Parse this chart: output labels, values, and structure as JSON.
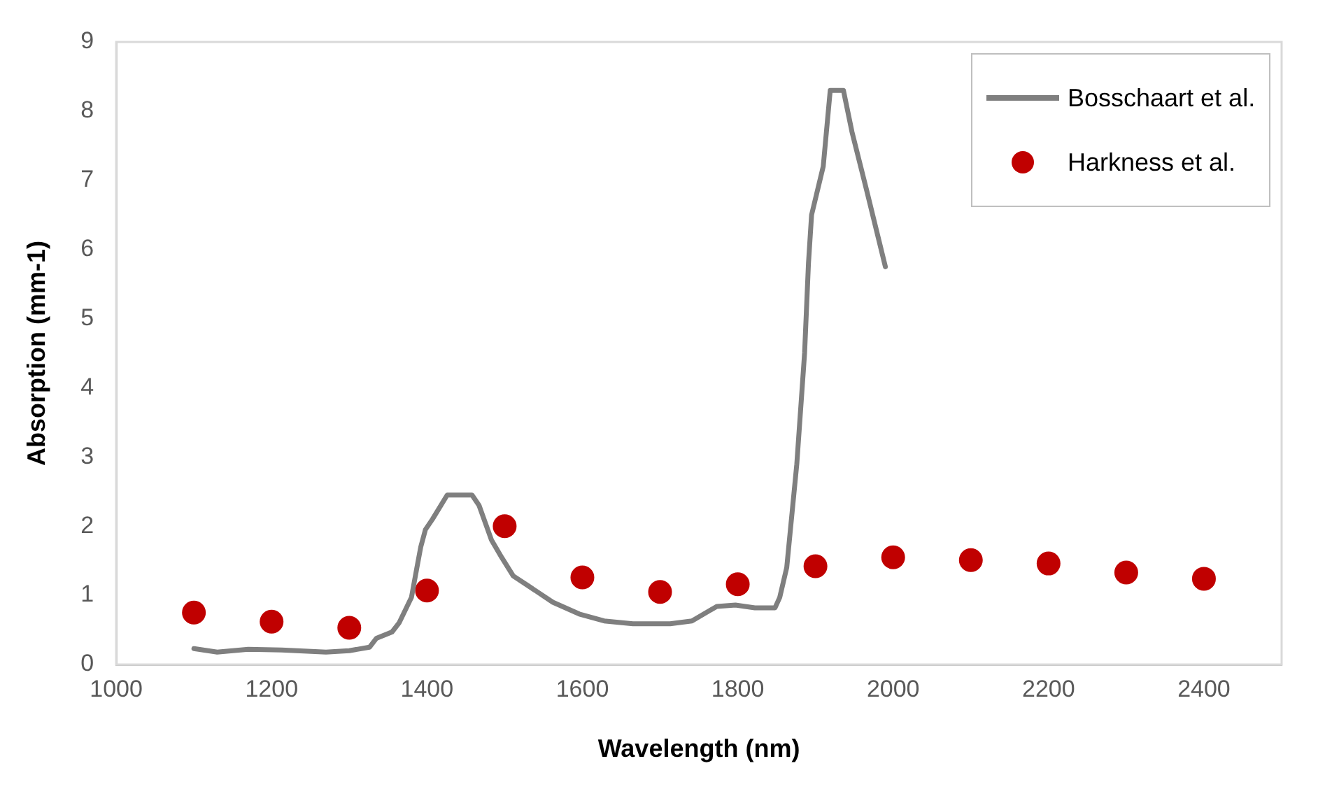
{
  "chart_data": {
    "type": "line",
    "xlabel": "Wavelength (nm)",
    "ylabel": "Absorption (mm-1)",
    "xlim": [
      1000,
      2500
    ],
    "xticks": [
      1000,
      1200,
      1400,
      1600,
      1800,
      2000,
      2200,
      2400
    ],
    "ylim": [
      0,
      9
    ],
    "yticks": [
      0,
      1,
      2,
      3,
      4,
      5,
      6,
      7,
      8,
      9
    ],
    "grid": false,
    "legend": "top right",
    "series": [
      {
        "name": "Bosschaart et al.",
        "color": "#7f7f7f",
        "marker": "none",
        "line_style": "solid",
        "x": [
          1100,
          1130,
          1170,
          1213,
          1270,
          1300,
          1326,
          1335,
          1355,
          1364,
          1380,
          1387,
          1392,
          1398,
          1407,
          1426,
          1458,
          1467,
          1483,
          1496,
          1511,
          1530,
          1562,
          1596,
          1628,
          1665,
          1713,
          1741,
          1773,
          1797,
          1822,
          1848,
          1854,
          1863,
          1876,
          1886,
          1891,
          1895,
          1910,
          1919,
          1936,
          1947,
          1966,
          1990
        ],
        "values": [
          0.23,
          0.18,
          0.22,
          0.21,
          0.18,
          0.2,
          0.25,
          0.38,
          0.47,
          0.6,
          0.97,
          1.4,
          1.7,
          1.95,
          2.1,
          2.45,
          2.45,
          2.3,
          1.8,
          1.55,
          1.28,
          1.14,
          0.9,
          0.73,
          0.63,
          0.59,
          0.59,
          0.63,
          0.84,
          0.86,
          0.82,
          0.82,
          0.97,
          1.4,
          2.9,
          4.5,
          5.8,
          6.5,
          7.2,
          8.3,
          8.3,
          7.7,
          6.85,
          5.75
        ]
      },
      {
        "name": "Harkness et al.",
        "type": "scatter",
        "color": "#c00000",
        "marker": "circle",
        "x": [
          1100,
          1200,
          1300,
          1400,
          1500,
          1600,
          1700,
          1800,
          1900,
          2000,
          2100,
          2200,
          2300,
          2400
        ],
        "values": [
          0.75,
          0.62,
          0.53,
          1.07,
          2.0,
          1.26,
          1.05,
          1.16,
          1.42,
          1.55,
          1.51,
          1.46,
          1.33,
          1.24
        ]
      }
    ]
  }
}
